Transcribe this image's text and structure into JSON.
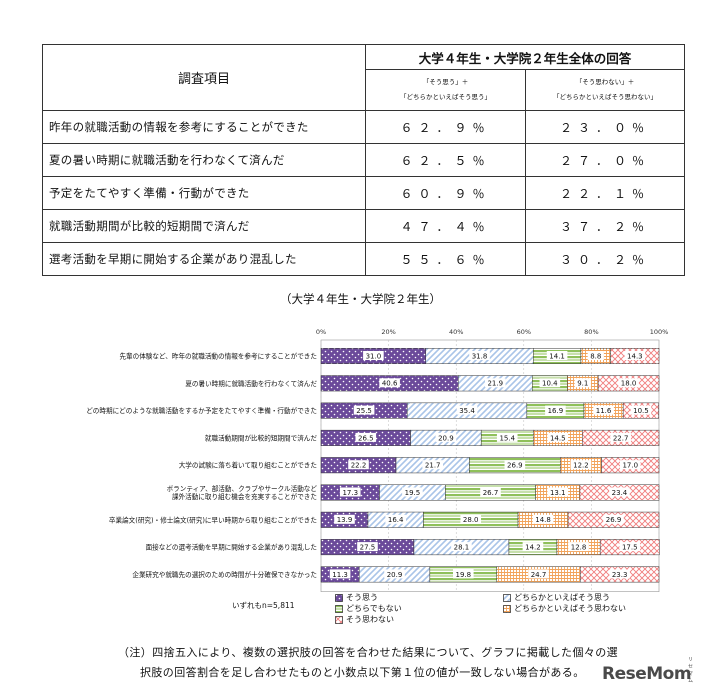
{
  "table": {
    "header_item": "調査項目",
    "header_group": "大学４年生・大学院２年生全体の回答",
    "col1_line1": "「そう思う」＋",
    "col1_line2": "「どちらかといえばそう思う」",
    "col2_line1": "「そう思わない」＋",
    "col2_line2": "「どちらかといえばそう思わない」",
    "rows": [
      {
        "item": "昨年の就職活動の情報を参考にすることができた",
        "agree": "６２．９％",
        "disagree": "２３．０％"
      },
      {
        "item": "夏の暑い時期に就職活動を行わなくて済んだ",
        "agree": "６２．５％",
        "disagree": "２７．０％"
      },
      {
        "item": "予定をたてやすく準備・行動ができた",
        "agree": "６０．９％",
        "disagree": "２２．１％"
      },
      {
        "item": "就職活動期間が比較的短期間で済んだ",
        "agree": "４７．４％",
        "disagree": "３７．２％"
      },
      {
        "item": "選考活動を早期に開始する企業があり混乱した",
        "agree": "５５．６％",
        "disagree": "３０．２％"
      }
    ]
  },
  "subtitle": "（大学４年生・大学院２年生）",
  "chart_data": {
    "type": "bar",
    "orientation": "horizontal-stacked-100",
    "x_ticks": [
      "0%",
      "20%",
      "40%",
      "60%",
      "80%",
      "100%"
    ],
    "xlim": [
      0,
      100
    ],
    "categories": [
      [
        "先輩の体験など、昨年の就職活動の情報を参考にすることができた"
      ],
      [
        "夏の暑い時期に就職活動を行わなくて済んだ"
      ],
      [
        "どの時期にどのような就職活動をするか予定をたてやすく準備・行動ができた"
      ],
      [
        "就職活動期間が比較的短期間で済んだ"
      ],
      [
        "大学の試験に落ち着いて取り組むことができた"
      ],
      [
        "ボランティア、部活動、クラブやサークル活動など",
        "課外活動に取り組む機会を充実することができた"
      ],
      [
        "卒業論文(研究)・修士論文(研究)に早い時期から取り組むことができた"
      ],
      [
        "面接などの選考活動を早期に開始する企業があり混乱した"
      ],
      [
        "企業研究や就職先の選択のための時間が十分確保できなかった"
      ]
    ],
    "series": [
      {
        "name": "そう思う",
        "color": "#6b4a9a",
        "pattern": "dots-white",
        "values": [
          31.0,
          40.6,
          25.5,
          26.5,
          22.2,
          17.3,
          13.9,
          27.5,
          11.3
        ]
      },
      {
        "name": "どちらかといえばそう思う",
        "color": "#a9c4e8",
        "pattern": "diagonal",
        "values": [
          31.8,
          21.9,
          35.4,
          20.9,
          21.7,
          19.5,
          16.4,
          28.1,
          20.9
        ]
      },
      {
        "name": "どちらでもない",
        "color": "#8fc05a",
        "pattern": "horizontal",
        "values": [
          14.1,
          10.4,
          16.9,
          15.4,
          26.9,
          26.7,
          28.0,
          14.2,
          19.8
        ]
      },
      {
        "name": "どちらかといえばそう思わない",
        "color": "#f2a35a",
        "pattern": "grid",
        "values": [
          8.8,
          9.1,
          11.6,
          14.5,
          12.2,
          13.1,
          14.8,
          12.8,
          24.7
        ]
      },
      {
        "name": "そう思わない",
        "color": "#f07c7c",
        "pattern": "crosshatch",
        "values": [
          14.3,
          18.0,
          10.5,
          22.7,
          17.0,
          23.4,
          26.9,
          17.5,
          23.3
        ]
      }
    ],
    "n_label": "いずれもn=5,811"
  },
  "note": {
    "line1": "（注）四捨五入により、複数の選択肢の回答を合わせた結果について、グラフに掲載した個々の選",
    "line2": "択肢の回答割合を足し合わせたものと小数点以下第１位の値が一致しない場合がある。"
  },
  "logo": {
    "text": "ReseMom",
    "small": "リセマム"
  }
}
